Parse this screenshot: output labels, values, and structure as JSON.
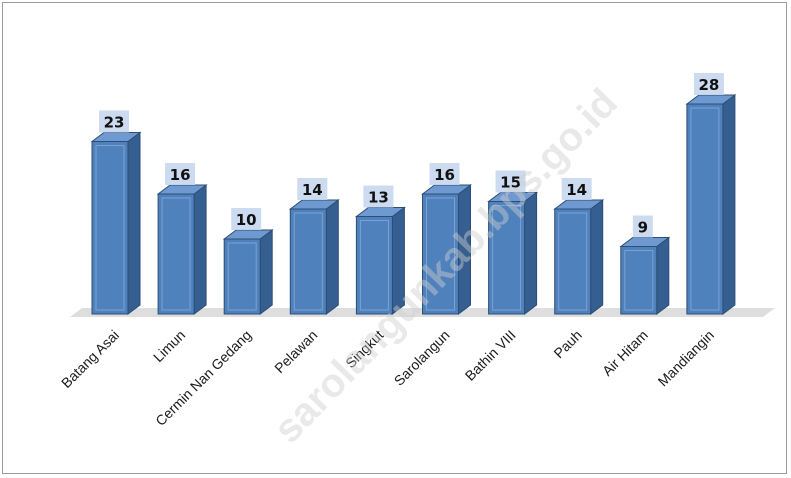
{
  "watermark": "sarolangunkab.bps.go.id",
  "colors": {
    "bar_front": "#4f81bd",
    "bar_side": "#365f91",
    "bar_top": "#6f9ad1",
    "bar_edge": "#2c4d75",
    "label_box": "#c6d7ee",
    "floor": "#d8d8d8"
  },
  "chart_data": {
    "type": "bar",
    "categories": [
      "Batang Asai",
      "Limun",
      "Cermin Nan Gedang",
      "Pelawan",
      "Singkut",
      "Sarolangun",
      "Bathin VIII",
      "Pauh",
      "Air Hitam",
      "Mandiangin"
    ],
    "values": [
      23,
      16,
      10,
      14,
      13,
      16,
      15,
      14,
      9,
      28
    ],
    "title": "",
    "xlabel": "",
    "ylabel": "",
    "ylim": [
      0,
      28
    ],
    "grid": false,
    "legend": "none",
    "style": "3d-column"
  }
}
